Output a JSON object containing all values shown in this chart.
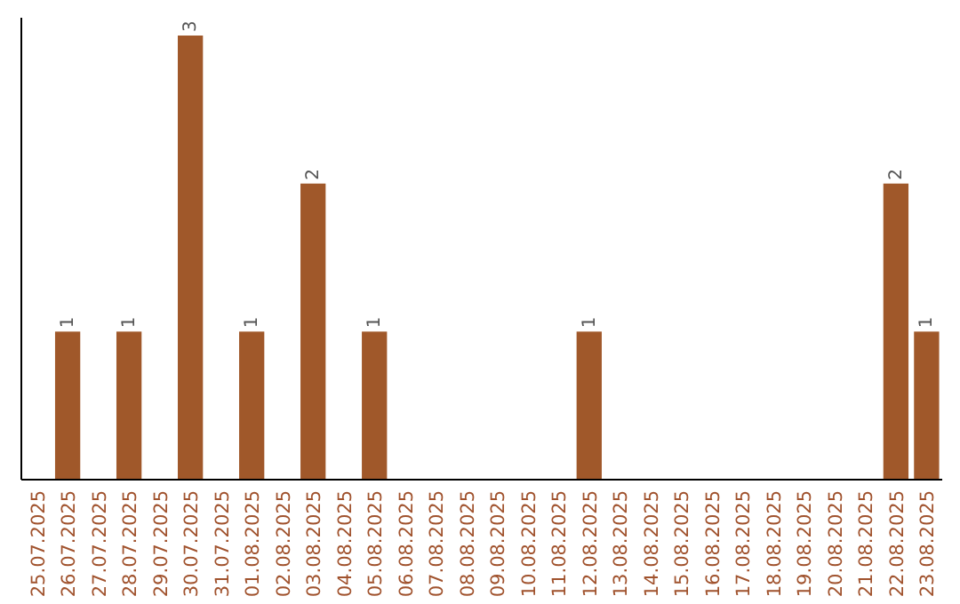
{
  "chart_data": {
    "type": "bar",
    "categories": [
      "25.07.2025",
      "26.07.2025",
      "27.07.2025",
      "28.07.2025",
      "29.07.2025",
      "30.07.2025",
      "31.07.2025",
      "01.08.2025",
      "02.08.2025",
      "03.08.2025",
      "04.08.2025",
      "05.08.2025",
      "06.08.2025",
      "07.08.2025",
      "08.08.2025",
      "09.08.2025",
      "10.08.2025",
      "11.08.2025",
      "12.08.2025",
      "13.08.2025",
      "14.08.2025",
      "15.08.2025",
      "16.08.2025",
      "17.08.2025",
      "18.08.2025",
      "19.08.2025",
      "20.08.2025",
      "21.08.2025",
      "22.08.2025",
      "23.08.2025"
    ],
    "values": [
      0,
      1,
      0,
      1,
      0,
      3,
      0,
      1,
      0,
      2,
      0,
      1,
      0,
      0,
      0,
      0,
      0,
      0,
      1,
      0,
      0,
      0,
      0,
      0,
      0,
      0,
      0,
      0,
      2,
      1
    ],
    "value_labels": [
      null,
      "1",
      null,
      "1",
      null,
      "3",
      null,
      "1",
      null,
      "2",
      null,
      "1",
      null,
      null,
      null,
      null,
      null,
      null,
      "1",
      null,
      null,
      null,
      null,
      null,
      null,
      null,
      null,
      null,
      "2",
      "1"
    ],
    "color": "#a0582a"
  }
}
